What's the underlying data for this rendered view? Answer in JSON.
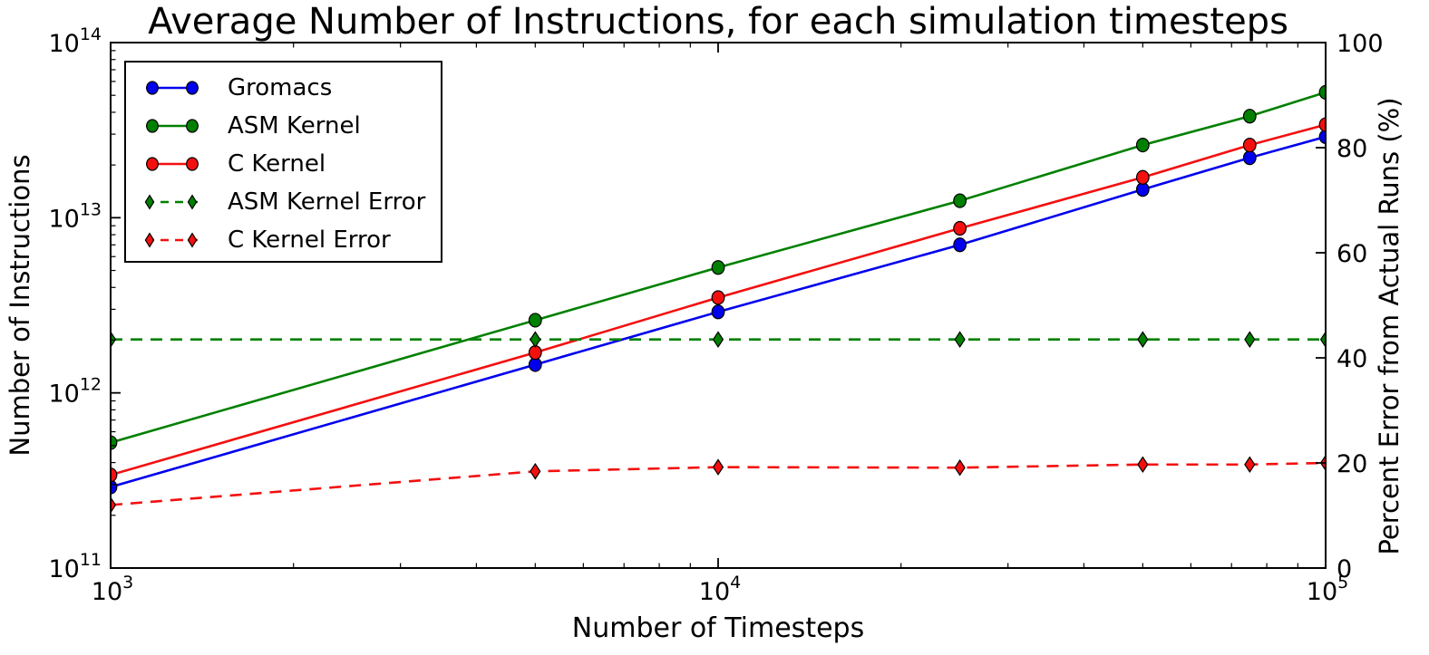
{
  "title": "Average Number of Instructions, for each simulation timesteps",
  "axes": {
    "x": {
      "label": "Number of Timesteps",
      "scale": "log",
      "min": 1000,
      "max": 100000,
      "major_tick_exponents": [
        3,
        4,
        5
      ],
      "minor_multipliers": [
        2,
        3,
        4,
        5,
        6,
        7,
        8,
        9
      ]
    },
    "y_left": {
      "label": "Number of Instructions",
      "scale": "log",
      "min": 100000000000.0,
      "max": 100000000000000.0,
      "major_tick_exponents": [
        11,
        12,
        13,
        14
      ],
      "minor_multipliers": [
        2,
        3,
        4,
        5,
        6,
        7,
        8,
        9
      ]
    },
    "y_right": {
      "label": "Percent Error from Actual Runs (%)",
      "scale": "linear",
      "min": 0,
      "max": 100,
      "ticks": [
        0,
        20,
        40,
        60,
        80,
        100
      ]
    }
  },
  "colors": {
    "blue": "#0000ee",
    "green": "#008000",
    "red": "#f40f0f",
    "axis": "#000000",
    "background": "#ffffff"
  },
  "chart_data": {
    "type": "line",
    "title": "Average Number of Instructions, for each simulation timesteps",
    "xlabel": "Number of Timesteps",
    "ylabel_left": "Number of Instructions",
    "ylabel_right": "Percent Error from Actual Runs (%)",
    "x_scale": "log",
    "y_left_scale": "log",
    "x_range": [
      1000,
      100000
    ],
    "y_left_range": [
      100000000000.0,
      100000000000000.0
    ],
    "y_right_range": [
      0,
      100
    ],
    "grid": false,
    "legend_position": "upper left",
    "x": [
      1000,
      5000,
      10000,
      25000,
      50000,
      75000,
      100000
    ],
    "series": [
      {
        "name": "Gromacs",
        "axis": "left",
        "color": "#0000ee",
        "linestyle": "solid",
        "marker": "circle",
        "values": [
          290000000000.0,
          1450000000000.0,
          2900000000000.0,
          7000000000000.0,
          14500000000000.0,
          22000000000000.0,
          29000000000000.0
        ]
      },
      {
        "name": "ASM Kernel",
        "axis": "left",
        "color": "#008000",
        "linestyle": "solid",
        "marker": "circle",
        "values": [
          520000000000.0,
          2600000000000.0,
          5200000000000.0,
          12500000000000.0,
          26000000000000.0,
          38000000000000.0,
          52000000000000.0
        ]
      },
      {
        "name": "C Kernel",
        "axis": "left",
        "color": "#f40f0f",
        "linestyle": "solid",
        "marker": "circle",
        "values": [
          340000000000.0,
          1700000000000.0,
          3500000000000.0,
          8700000000000.0,
          17000000000000.0,
          26000000000000.0,
          34000000000000.0
        ]
      },
      {
        "name": "ASM Kernel Error",
        "axis": "right",
        "color": "#008000",
        "linestyle": "dashed",
        "marker": "diamond",
        "values": [
          43.5,
          43.5,
          43.5,
          43.5,
          43.5,
          43.5,
          43.5
        ]
      },
      {
        "name": "C Kernel Error",
        "axis": "right",
        "color": "#f40f0f",
        "linestyle": "dashed",
        "marker": "diamond",
        "values": [
          12,
          18.4,
          19.2,
          19.1,
          19.7,
          19.7,
          20
        ]
      }
    ]
  }
}
